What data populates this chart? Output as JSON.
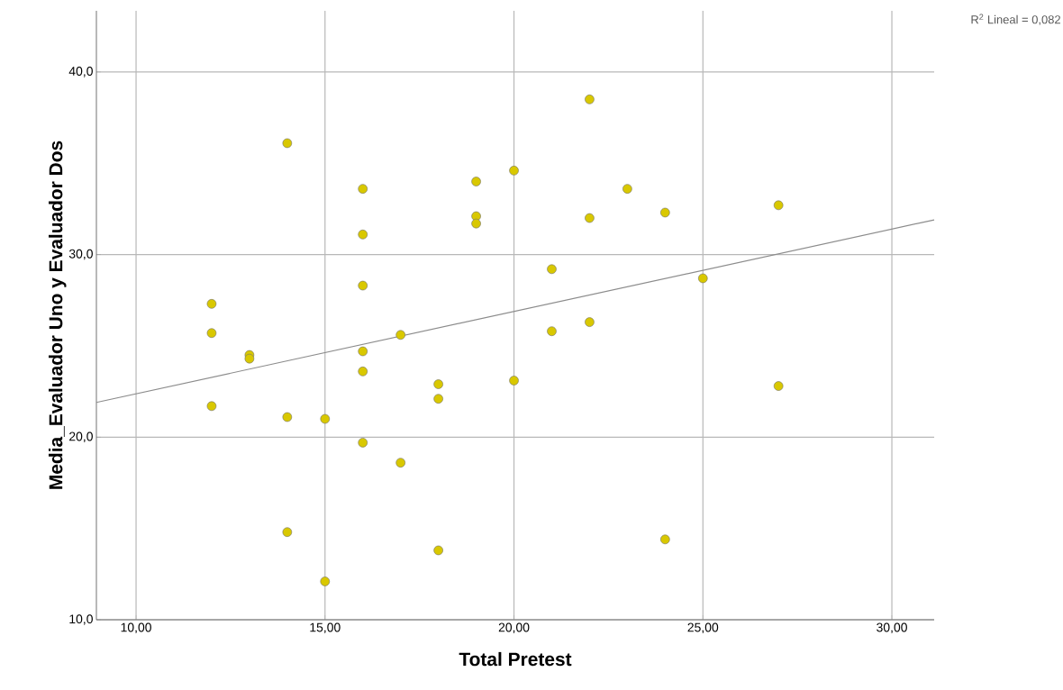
{
  "chart_data": {
    "type": "scatter",
    "xlabel": "Total Pretest",
    "ylabel": "Media_Evaluador Uno y Evaluador Dos",
    "annotations": [
      "R$^{2}$ Lineal = 0,082"
    ],
    "xlim": [
      8.95,
      31.12
    ],
    "ylim": [
      10,
      43.35
    ],
    "xticks": [
      {
        "value": 10,
        "label": "10,00"
      },
      {
        "value": 15,
        "label": "15,00"
      },
      {
        "value": 20,
        "label": "20,00"
      },
      {
        "value": 25,
        "label": "25,00"
      },
      {
        "value": 30,
        "label": "30,00"
      }
    ],
    "yticks": [
      {
        "value": 10,
        "label": "10,0"
      },
      {
        "value": 20,
        "label": "20,0"
      },
      {
        "value": 30,
        "label": "30,0"
      },
      {
        "value": 40,
        "label": "40,0"
      }
    ],
    "grid": true,
    "marker": "circle",
    "series": [
      {
        "color": "#d9c800",
        "x": [
          12,
          12,
          12,
          13,
          13,
          14,
          14,
          14,
          15,
          15,
          16,
          16,
          16,
          16,
          16,
          16,
          17,
          17,
          18,
          18,
          18,
          19,
          19,
          19,
          20,
          20,
          21,
          21,
          22,
          22,
          22,
          23,
          24,
          24,
          25,
          27,
          27
        ],
        "values": [
          27.3,
          25.7,
          21.7,
          24.5,
          24.3,
          36.1,
          21.1,
          14.8,
          21.0,
          12.1,
          33.6,
          31.1,
          28.3,
          24.7,
          23.6,
          19.7,
          25.6,
          18.6,
          22.9,
          22.1,
          13.8,
          34.0,
          32.1,
          31.7,
          34.6,
          23.1,
          29.2,
          25.8,
          38.5,
          32.0,
          26.3,
          33.6,
          32.3,
          14.4,
          28.7,
          32.7,
          22.8
        ]
      },
      {
        "type": "line",
        "color": "#8c8c8c",
        "marker": "none",
        "x": [
          8.95,
          31.12
        ],
        "values": [
          21.9,
          31.9
        ]
      }
    ]
  }
}
